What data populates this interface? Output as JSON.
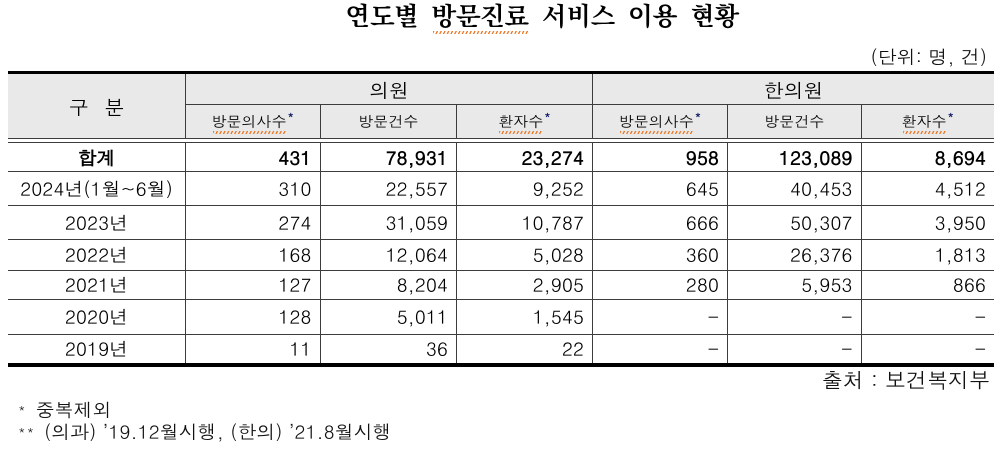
{
  "title": {
    "prefix": "연도별 ",
    "misspelled": "방문진료",
    "suffix": " 서비스 이용 현황"
  },
  "unit_note": "(단위: 명, 건)",
  "table": {
    "corner_header": "구 분",
    "group_headers": [
      "의원",
      "한의원"
    ],
    "sub_headers": [
      {
        "label": "방문의사수",
        "marker": "*"
      },
      {
        "label": "방문건수",
        "marker": ""
      },
      {
        "label": "환자수",
        "marker": "*"
      },
      {
        "label": "방문의사수",
        "marker": "*"
      },
      {
        "label": "방문건수",
        "marker": ""
      },
      {
        "label": "환자수",
        "marker": "*"
      }
    ],
    "rows": [
      {
        "label": "합계",
        "values": [
          "431",
          "78,931",
          "23,274",
          "958",
          "123,089",
          "8,694"
        ]
      },
      {
        "label": "2024년(1월~6월)",
        "values": [
          "310",
          "22,557",
          "9,252",
          "645",
          "40,453",
          "4,512"
        ]
      },
      {
        "label": "2023년",
        "values": [
          "274",
          "31,059",
          "10,787",
          "666",
          "50,307",
          "3,950"
        ]
      },
      {
        "label": "2022년",
        "values": [
          "168",
          "12,064",
          "5,028",
          "360",
          "26,376",
          "1,813"
        ]
      },
      {
        "label": "2021년",
        "values": [
          "127",
          "8,204",
          "2,905",
          "280",
          "5,953",
          "866"
        ]
      },
      {
        "label": "2020년",
        "values": [
          "128",
          "5,011",
          "1,545",
          "-",
          "-",
          "-"
        ]
      },
      {
        "label": "2019년",
        "values": [
          "11",
          "36",
          "22",
          "-",
          "-",
          "-"
        ]
      }
    ]
  },
  "source_note": "출처 : 보건복지부",
  "footnotes": [
    {
      "marker": "*",
      "text": "중복제외"
    },
    {
      "marker": "**",
      "text": "(의과) ’19.12월시행, (한의) ’21.8월시행"
    }
  ],
  "colors": {
    "header_background": "#e9e9e9",
    "thick_border": "#000000",
    "thin_border": "#3c3c3c",
    "spellcheck_underline": "#ec7c2c",
    "text": "#000000"
  }
}
